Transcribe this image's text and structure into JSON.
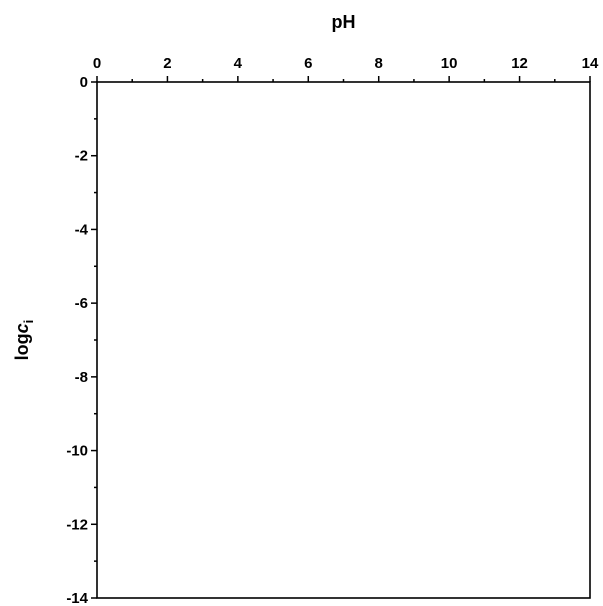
{
  "chart_data": {
    "type": "line",
    "title": "",
    "xlabel": "pH",
    "ylabel_prefix": "log",
    "ylabel_var": "c",
    "ylabel_sub": "i",
    "xlim": [
      0,
      14
    ],
    "ylim": [
      -14,
      0
    ],
    "x_ticks": [
      0,
      2,
      4,
      6,
      8,
      10,
      12,
      14
    ],
    "x_minor_ticks": [
      1,
      3,
      5,
      7,
      9,
      11,
      13
    ],
    "y_ticks": [
      0,
      -2,
      -4,
      -6,
      -8,
      -10,
      -12,
      -14
    ],
    "y_minor_ticks": [
      -1,
      -3,
      -5,
      -7,
      -9,
      -11,
      -13
    ],
    "x_axis_position": "top",
    "grid": false,
    "series": []
  }
}
